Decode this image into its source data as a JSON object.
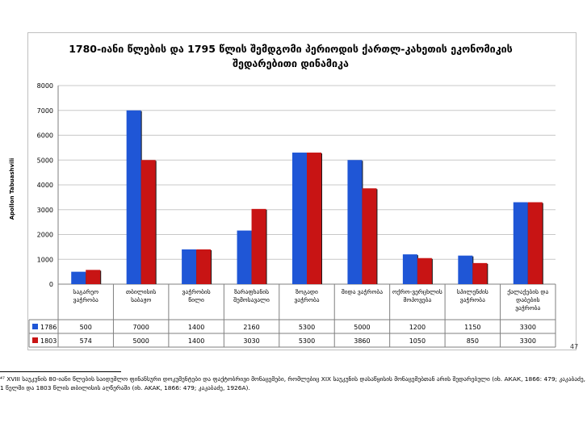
{
  "chart_data": {
    "type": "bar",
    "title_line1": "1780-იანი წლების და 1795 წლის შემდგომი პერიოდის ქართლ-კახეთის ეკონომიკის",
    "title_line2": "შედარებითი დინამიკა",
    "ylabel": "Apollon Tabuashvili",
    "ylim": [
      0,
      8000
    ],
    "yticks": [
      "0",
      "1000",
      "2000",
      "3000",
      "4000",
      "5000",
      "6000",
      "7000",
      "8000"
    ],
    "categories": [
      "საგარეო ვაჭრობა",
      "თბილისის საბაჟო",
      "ვაჭრობის წილი",
      "ზარაფხანის შემოსავალი",
      "ზოგადი ვაჭრობა",
      "შიდა ვაჭრობა",
      "ოქრო-ვერცხლის მოპოვება",
      "სპილენძის ვაჭრობა",
      "ქალაქების და დაბების ვაჭრობა"
    ],
    "series": [
      {
        "name": "1786",
        "color": "#1f56d6",
        "values": [
          500,
          7000,
          1400,
          2160,
          5300,
          5000,
          1200,
          1150,
          3300
        ],
        "labels": [
          "500",
          "7000",
          "1400",
          "2160",
          "5300",
          "5000",
          "1200",
          "1150",
          "3300"
        ]
      },
      {
        "name": "1803",
        "color": "#c81414",
        "values": [
          574,
          5000,
          1400,
          3030,
          5300,
          3860,
          1050,
          850,
          3300
        ],
        "labels": [
          "574",
          "5000",
          "1400",
          "3030",
          "5300",
          "3860",
          "1050",
          "850",
          "3300"
        ]
      }
    ],
    "grid": true,
    "legend": "data table"
  },
  "page_number": "47",
  "footnote": {
    "line1": "⁴⁷ XVIII საუკუნის 80-იანი წლების საიდუმლო ფინანსური დოკუმენტები და ფაქტობრივი მონაცემები, რომლებიც XIX საუკუნის დასაწყისის მონაცემებთან არის შედარებული (იხ. АКАК, 1866: 479; კაკაბაძე, 1926Ა).",
    "line2": "1 წელში და 1803 წლის თბილისის აღწერაში (იხ. AKAK, 1866: 479; კაკაბაძე, 1926A)."
  }
}
